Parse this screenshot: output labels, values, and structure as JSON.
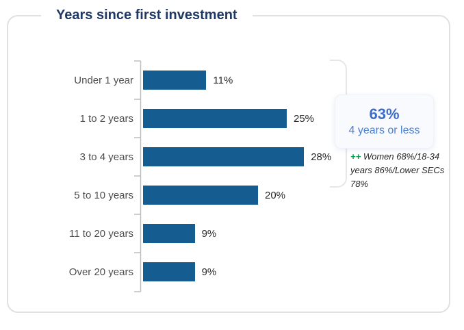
{
  "chart_data": {
    "type": "bar",
    "orientation": "horizontal",
    "title": "Years since first investment",
    "categories": [
      "Under 1 year",
      "1 to 2 years",
      "3 to 4 years",
      "5 to 10 years",
      "11 to 20 years",
      "Over 20 years"
    ],
    "values": [
      11,
      25,
      28,
      20,
      9,
      9
    ],
    "value_labels": [
      "11%",
      "25%",
      "28%",
      "20%",
      "9%",
      "9%"
    ],
    "xlim": [
      0,
      30
    ],
    "grid": false,
    "legend": "none",
    "bar_color": "#155d91"
  },
  "callout": {
    "value": "63%",
    "label": "4 years or less",
    "accent_color": "#3e6dc6"
  },
  "annotation": {
    "marker": "++",
    "text": "Women 68%/18-34 years 86%/Lower SECs 78%",
    "marker_color": "#009c48"
  },
  "colors": {
    "title": "#1f3864",
    "bar": "#155d91",
    "axis": "#bfbfbf",
    "card_border": "#e1e1e1"
  }
}
